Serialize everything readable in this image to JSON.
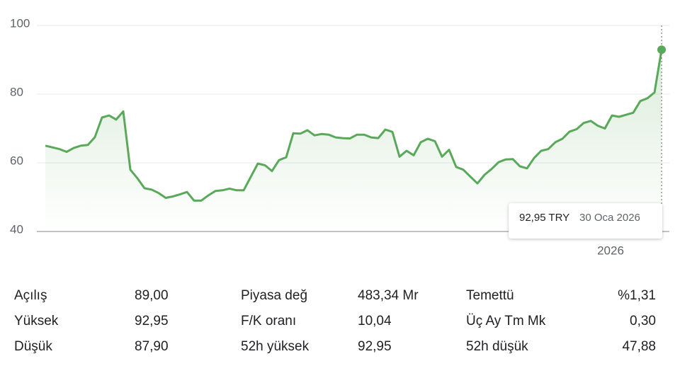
{
  "chart_data": {
    "type": "line",
    "color": "#5aa95a",
    "values": [
      65.0,
      64.5,
      64.0,
      63.2,
      64.3,
      65.0,
      65.2,
      67.5,
      73.2,
      73.8,
      72.6,
      75.0,
      58.0,
      55.5,
      52.6,
      52.2,
      51.2,
      49.8,
      50.2,
      50.8,
      51.5,
      49.0,
      49.0,
      50.5,
      51.8,
      52.0,
      52.5,
      52.0,
      52.0,
      55.9,
      59.8,
      59.3,
      57.6,
      60.8,
      61.6,
      68.6,
      68.5,
      69.5,
      68.0,
      68.4,
      68.2,
      67.4,
      67.2,
      67.1,
      68.2,
      68.2,
      67.4,
      67.2,
      69.7,
      69.0,
      61.8,
      63.5,
      62.2,
      66.0,
      67.0,
      66.3,
      61.8,
      63.8,
      58.8,
      58.0,
      56.0,
      54.0,
      56.5,
      58.2,
      60.2,
      61.0,
      61.1,
      59.0,
      58.4,
      61.4,
      63.5,
      64.0,
      66.0,
      67.0,
      69.1,
      69.8,
      71.6,
      72.2,
      70.8,
      70.0,
      73.8,
      73.4,
      74.0,
      74.6,
      78.0,
      78.8,
      80.5,
      92.95
    ],
    "xlim": [
      0,
      87
    ],
    "xticks": [
      {
        "value": 79.8,
        "label": "2026"
      }
    ],
    "ylim": [
      40,
      100
    ],
    "yticks": [
      100,
      80,
      60,
      40
    ],
    "grid": true,
    "tooltip": {
      "price": "92,95 TRY",
      "date": "30 Oca 2026"
    }
  },
  "stats": [
    {
      "label": "Açılış",
      "value": "89,00"
    },
    {
      "label": "Yüksek",
      "value": "92,95"
    },
    {
      "label": "Düşük",
      "value": "87,90"
    },
    {
      "label": "Piyasa değ",
      "value": "483,34 Mr"
    },
    {
      "label": "F/K oranı",
      "value": "10,04"
    },
    {
      "label": "52h yüksek",
      "value": "92,95"
    },
    {
      "label": "Temettü",
      "value": "%1,31"
    },
    {
      "label": "Üç Ay Tm Mk",
      "value": "0,30"
    },
    {
      "label": "52h düşük",
      "value": "47,88"
    }
  ]
}
